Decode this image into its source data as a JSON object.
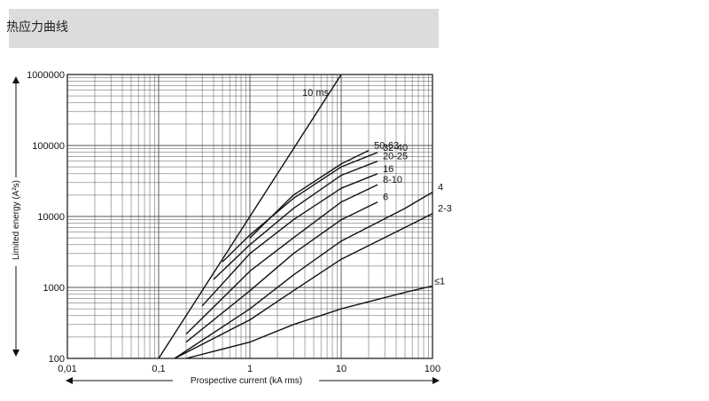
{
  "header": {
    "title": "热应力曲线"
  },
  "chart_data": {
    "type": "line",
    "title": "",
    "xlabel": "Prospective current (kA rms)",
    "ylabel": "Limited energy (A²s)",
    "x_scale": "log",
    "y_scale": "log",
    "xlim": [
      0.01,
      100
    ],
    "ylim": [
      100,
      1000000
    ],
    "grid": true,
    "x_ticks": [
      "0,01",
      "0,1",
      "1",
      "10",
      "100"
    ],
    "y_ticks": [
      "100",
      "1000",
      "10000",
      "100000",
      "1000000"
    ],
    "series": [
      {
        "name": "10 ms",
        "x": [
          0.1,
          1,
          10
        ],
        "y": [
          100,
          10000,
          1000000
        ]
      },
      {
        "name": "50-63",
        "x": [
          1,
          3,
          10,
          20
        ],
        "y": [
          5000,
          20000,
          55000,
          85000
        ]
      },
      {
        "name": "32-40",
        "x": [
          0.5,
          1,
          3,
          10,
          25
        ],
        "y": [
          2300,
          5500,
          18000,
          50000,
          80000
        ]
      },
      {
        "name": "20-25",
        "x": [
          0.4,
          1,
          3,
          10,
          25
        ],
        "y": [
          1300,
          4000,
          13000,
          38000,
          60000
        ]
      },
      {
        "name": "16",
        "x": [
          0.3,
          1,
          3,
          10,
          25
        ],
        "y": [
          550,
          3000,
          9000,
          25000,
          40000
        ]
      },
      {
        "name": "8-10",
        "x": [
          0.2,
          1,
          3,
          10,
          25
        ],
        "y": [
          220,
          1700,
          5000,
          16000,
          28000
        ]
      },
      {
        "name": "6",
        "x": [
          0.2,
          1,
          3,
          10,
          25
        ],
        "y": [
          170,
          900,
          3000,
          9000,
          16000
        ]
      },
      {
        "name": "4",
        "x": [
          0.15,
          1,
          3,
          10,
          50,
          100
        ],
        "y": [
          100,
          500,
          1500,
          4500,
          13000,
          22000
        ]
      },
      {
        "name": "2-3",
        "x": [
          0.15,
          1,
          3,
          10,
          50,
          100
        ],
        "y": [
          100,
          350,
          900,
          2500,
          7000,
          11000
        ]
      },
      {
        "name": "≤1",
        "x": [
          0.2,
          1,
          3,
          10,
          50,
          100
        ],
        "y": [
          100,
          170,
          300,
          500,
          850,
          1050
        ]
      }
    ]
  }
}
